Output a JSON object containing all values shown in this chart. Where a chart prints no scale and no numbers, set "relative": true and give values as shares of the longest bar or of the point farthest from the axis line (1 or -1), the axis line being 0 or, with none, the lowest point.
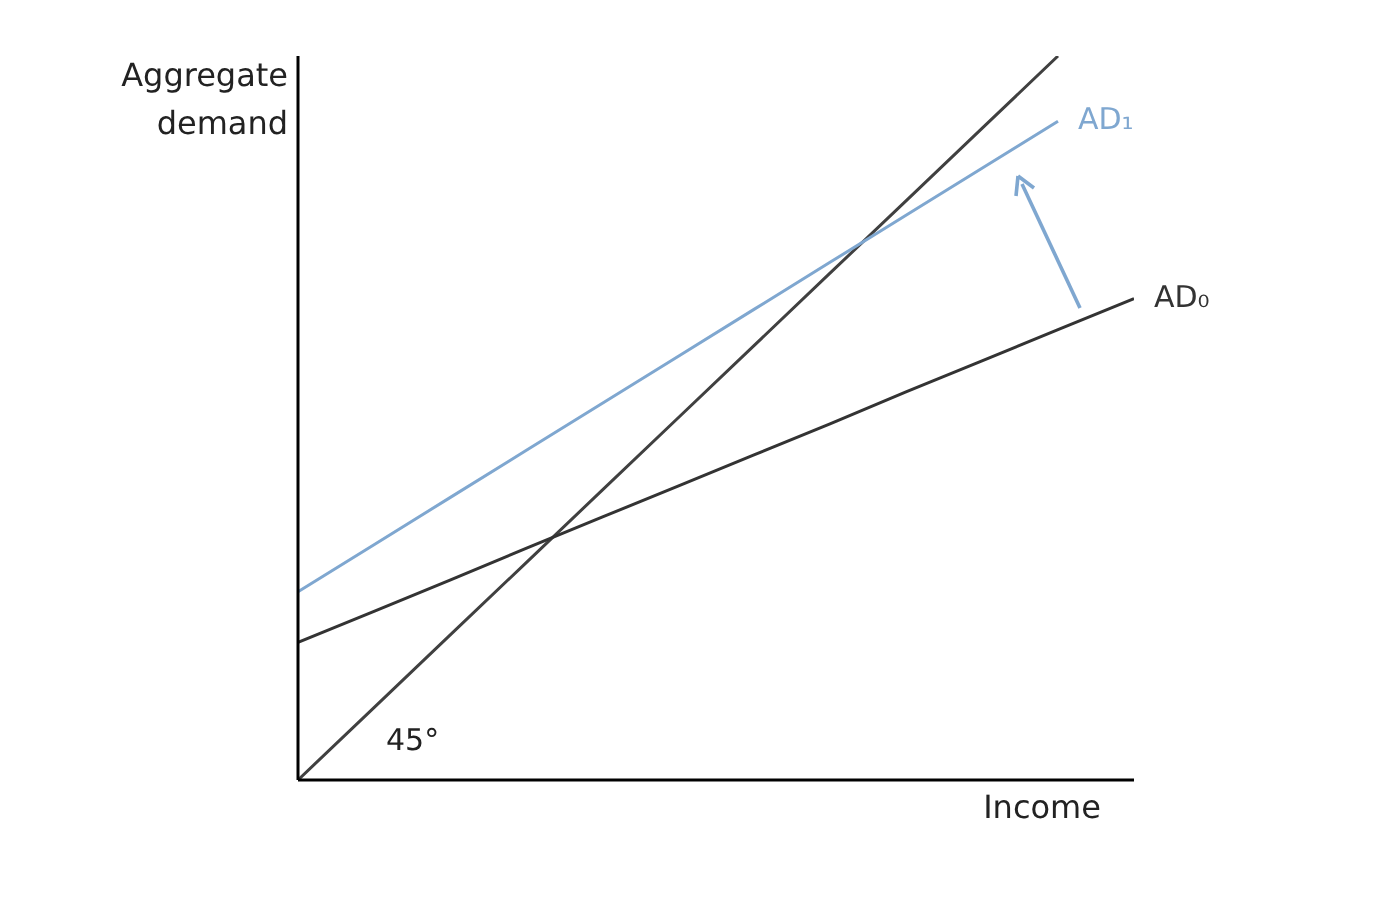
{
  "chart_data": {
    "type": "line",
    "relative": true,
    "ylabel": "Aggregate demand",
    "xlabel": "Income",
    "marker": "none",
    "line_style": "solid",
    "annotations": [
      "45°"
    ],
    "categories": [
      null,
      null,
      null,
      null,
      null,
      null,
      null,
      null,
      null,
      null,
      null,
      null
    ],
    "series": [
      {
        "color": "#404040",
        "values": [
          0,
          0.1,
          0.2,
          0.3,
          0.4,
          0.5,
          0.6,
          0.7,
          0.8,
          0.9,
          1,
          null
        ]
      },
      {
        "name": "AD₁",
        "color": "#7fa7d0",
        "values": [
          0.26,
          0.325,
          0.39,
          0.455,
          0.52,
          0.585,
          0.65,
          0.715,
          0.78,
          0.845,
          0.91,
          null
        ]
      },
      {
        "name": "AD₀",
        "color": "#333333",
        "values": [
          0.19,
          0.233,
          0.276,
          0.32,
          0.363,
          0.406,
          0.449,
          0.492,
          0.536,
          0.579,
          0.622,
          0.665
        ]
      }
    ]
  }
}
